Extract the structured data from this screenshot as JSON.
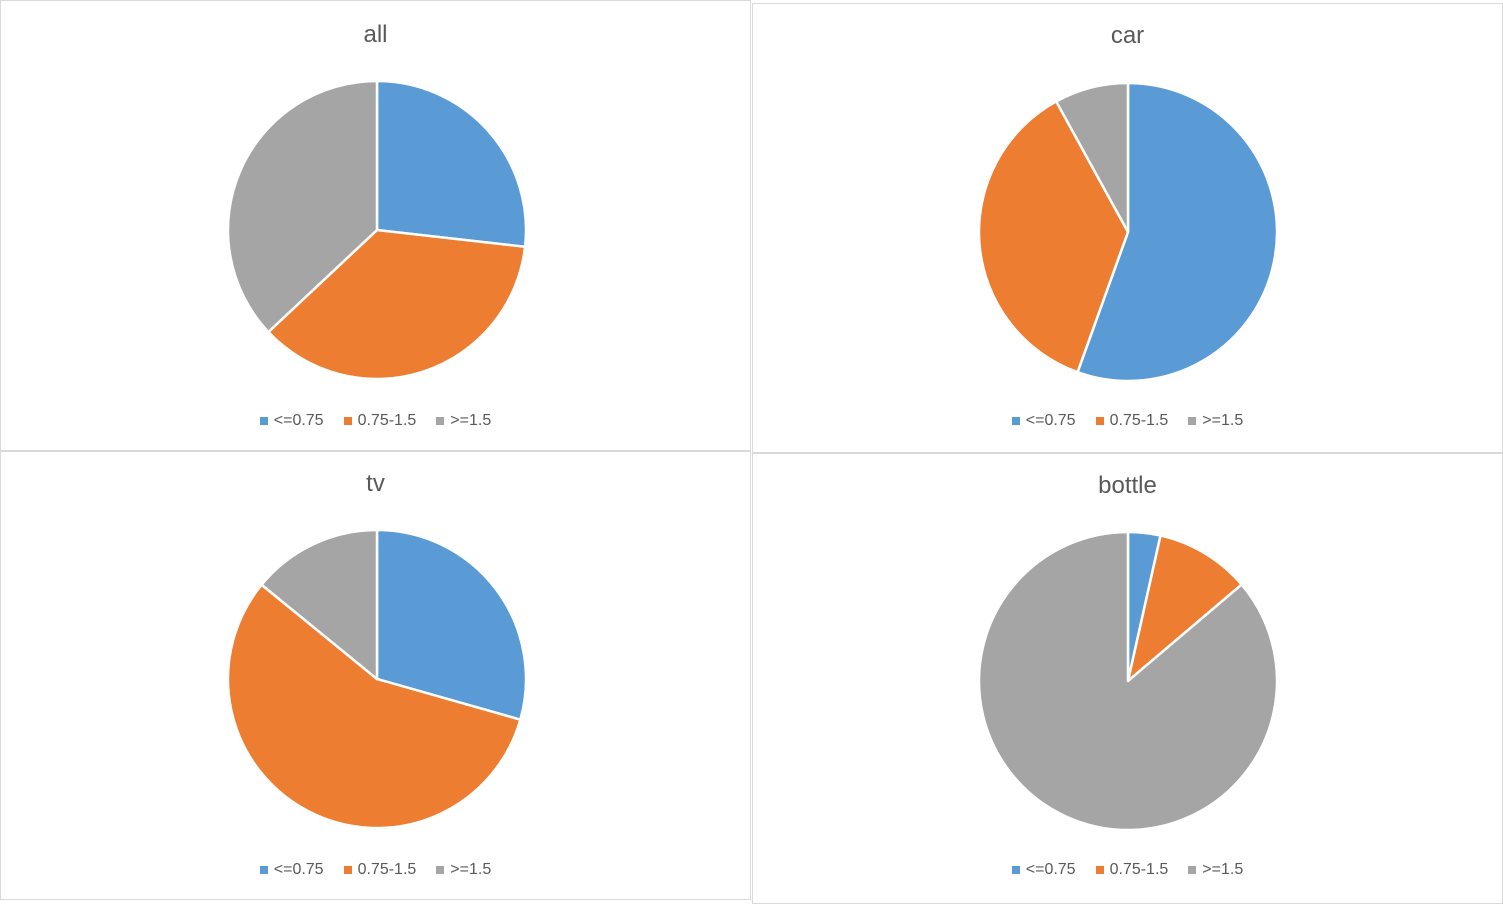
{
  "colors": {
    "s1": "#5b9bd5",
    "s2": "#ed7d31",
    "s3": "#a5a5a5"
  },
  "chart_data": [
    {
      "type": "pie",
      "title": "all",
      "categories": [
        "<=0.75",
        "0.75-1.5",
        ">=1.5"
      ],
      "values": [
        26.8,
        36.2,
        37.0
      ],
      "legend_position": "bottom"
    },
    {
      "type": "pie",
      "title": "car",
      "categories": [
        "<=0.75",
        "0.75-1.5",
        ">=1.5"
      ],
      "values": [
        55.5,
        36.5,
        8.0
      ],
      "legend_position": "bottom"
    },
    {
      "type": "pie",
      "title": "tv",
      "categories": [
        "<=0.75",
        "0.75-1.5",
        ">=1.5"
      ],
      "values": [
        29.4,
        56.5,
        14.1
      ],
      "legend_position": "bottom"
    },
    {
      "type": "pie",
      "title": "bottle",
      "categories": [
        "<=0.75",
        "0.75-1.5",
        ">=1.5"
      ],
      "values": [
        3.5,
        10.3,
        86.2
      ],
      "legend_position": "bottom"
    }
  ]
}
